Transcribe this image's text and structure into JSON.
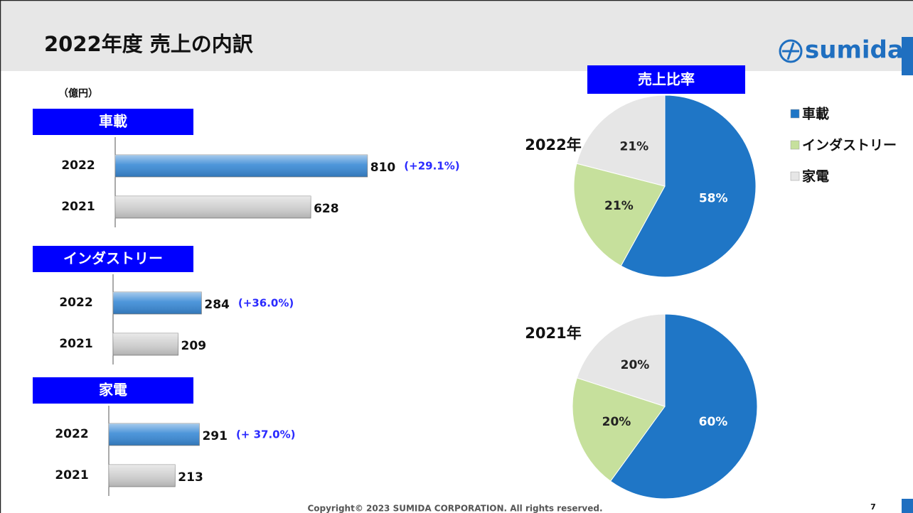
{
  "header": {
    "title": "2022年度 売上の内訳",
    "logo": "sumida"
  },
  "unit": "（億円）",
  "pie_header": "売上比率",
  "legend": [
    "車載",
    "インダストリー",
    "家電"
  ],
  "footer": {
    "copyright": "Copyright© 2023 SUMIDA CORPORATION. All rights reserved.",
    "page": "7"
  },
  "chart_data": [
    {
      "type": "bar",
      "orientation": "horizontal",
      "title": "車載",
      "categories": [
        "2022",
        "2021"
      ],
      "values": [
        810,
        628
      ],
      "colors": [
        "#3a8ad6",
        "#cfcfcf"
      ],
      "annotation": "(+29.1%)"
    },
    {
      "type": "bar",
      "orientation": "horizontal",
      "title": "インダストリー",
      "categories": [
        "2022",
        "2021"
      ],
      "values": [
        284,
        209
      ],
      "colors": [
        "#3a8ad6",
        "#cfcfcf"
      ],
      "annotation": "(+36.0%)"
    },
    {
      "type": "bar",
      "orientation": "horizontal",
      "title": "家電",
      "categories": [
        "2022",
        "2021"
      ],
      "values": [
        291,
        213
      ],
      "colors": [
        "#3a8ad6",
        "#cfcfcf"
      ],
      "annotation": "(+ 37.0%)"
    },
    {
      "type": "pie",
      "title": "2022年",
      "values": [
        58,
        21,
        21
      ],
      "value_labels": [
        "58%",
        "21%",
        "21%"
      ],
      "colors": [
        "#1f76c6",
        "#c6e09c",
        "#e6e6e6"
      ]
    },
    {
      "type": "pie",
      "title": "2021年",
      "values": [
        60,
        20,
        20
      ],
      "value_labels": [
        "60%",
        "20%",
        "20%"
      ],
      "colors": [
        "#1f76c6",
        "#c6e09c",
        "#e6e6e6"
      ]
    }
  ]
}
